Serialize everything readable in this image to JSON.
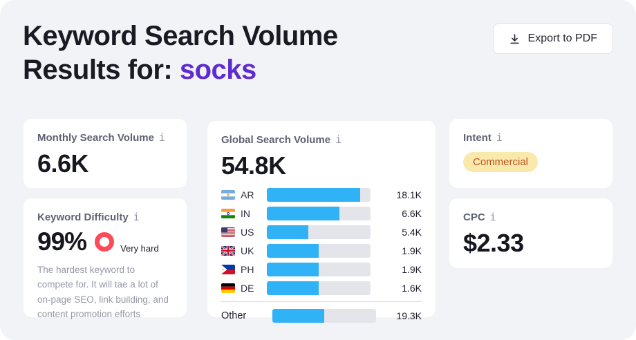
{
  "header": {
    "title_line1": "Keyword Search Volume",
    "title_line2_prefix": "Results for: ",
    "keyword": "socks",
    "export_button_label": "Export to PDF"
  },
  "cards": {
    "monthly": {
      "label": "Monthly Search Volume",
      "value": "6.6K"
    },
    "difficulty": {
      "label": "Keyword Difficulty",
      "value": "99%",
      "rating": "Very hard",
      "description": "The hardest keyword to compete for. It will tae a lot of on-page SEO, link building, and content promotion efforts"
    },
    "global": {
      "label": "Global Search Volume",
      "value": "54.8K"
    },
    "intent": {
      "label": "Intent",
      "value": "Commercial"
    },
    "cpc": {
      "label": "CPC",
      "value": "$2.33"
    }
  },
  "chart_data": {
    "type": "bar",
    "title": "Global Search Volume",
    "total_label": "54.8K",
    "categories": [
      "AR",
      "IN",
      "US",
      "UK",
      "PH",
      "DE",
      "Other"
    ],
    "values": [
      18100,
      6600,
      5400,
      1900,
      1900,
      1600,
      19300
    ],
    "value_labels": [
      "18.1K",
      "6.6K",
      "5.4K",
      "1.9K",
      "1.9K",
      "1.6K",
      "19.3K"
    ],
    "fill_fractions": [
      0.9,
      0.7,
      0.4,
      0.5,
      0.5,
      0.5,
      0.5
    ],
    "orientation": "horizontal",
    "grid": false,
    "legend": false
  },
  "icons": {
    "info": "i",
    "download": "download-icon"
  },
  "colors": {
    "panel_bg": "#F2F3F6",
    "card_bg": "#FFFFFF",
    "keyword_accent": "#5E2BD1",
    "bar_fill": "#30B2F7",
    "bar_track": "#E3E5EB",
    "difficulty_ring": "#FC4A59",
    "intent_badge_bg": "#FAE9AB",
    "intent_badge_text": "#BF4F1D"
  }
}
